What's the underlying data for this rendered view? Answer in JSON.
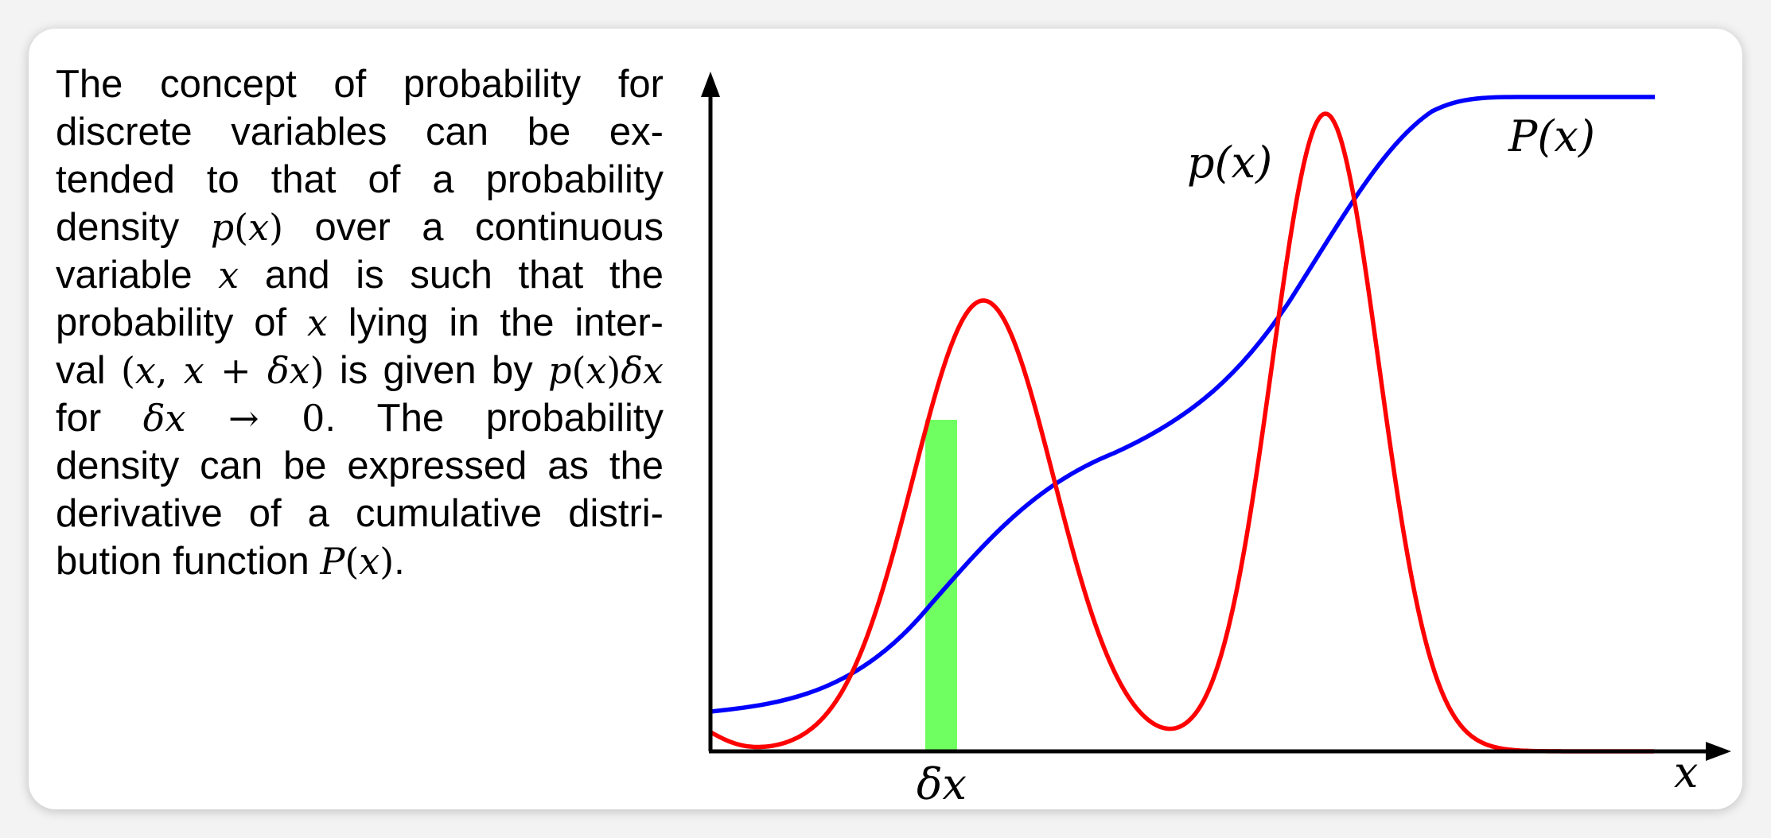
{
  "paragraph": {
    "lines": [
      [
        {
          "t": "The concept of probability for"
        }
      ],
      [
        {
          "t": "discrete variables can be ex-"
        }
      ],
      [
        {
          "t": "tended to that of a probability"
        }
      ],
      [
        {
          "t": "density "
        },
        {
          "m": "p"
        },
        {
          "u": "("
        },
        {
          "m": "x"
        },
        {
          "u": ")"
        },
        {
          "t": " over a continuous"
        }
      ],
      [
        {
          "t": "variable "
        },
        {
          "m": "x"
        },
        {
          "t": " and is such that the"
        }
      ],
      [
        {
          "t": "probability of "
        },
        {
          "m": "x"
        },
        {
          "t": " lying in the inter-"
        }
      ],
      [
        {
          "t": "val "
        },
        {
          "u": "("
        },
        {
          "m": "x"
        },
        {
          "u": ", "
        },
        {
          "m": "x"
        },
        {
          "u": " + "
        },
        {
          "m": "δx"
        },
        {
          "u": ")"
        },
        {
          "t": " is given by "
        },
        {
          "m": "p"
        },
        {
          "u": "("
        },
        {
          "m": "x"
        },
        {
          "u": ")"
        },
        {
          "m": "δx"
        }
      ],
      [
        {
          "t": "for "
        },
        {
          "m": "δx"
        },
        {
          "u": " → 0"
        },
        {
          "t": ".   The probability"
        }
      ],
      [
        {
          "t": "density can be expressed as the"
        }
      ],
      [
        {
          "t": "derivative of a cumulative distri-"
        }
      ],
      [
        {
          "t": "bution function "
        },
        {
          "m": "P"
        },
        {
          "u": "("
        },
        {
          "m": "x"
        },
        {
          "u": ")"
        },
        {
          "t": "."
        }
      ]
    ]
  },
  "figure": {
    "labels": {
      "density": "p(x)",
      "cumulative": "P(x)",
      "interval": "δx",
      "x_axis": "x"
    },
    "colors": {
      "density_curve": "#ff0000",
      "cumulative_curve": "#0000ff",
      "interval_band": "#70ff60",
      "axes": "#000000"
    }
  }
}
